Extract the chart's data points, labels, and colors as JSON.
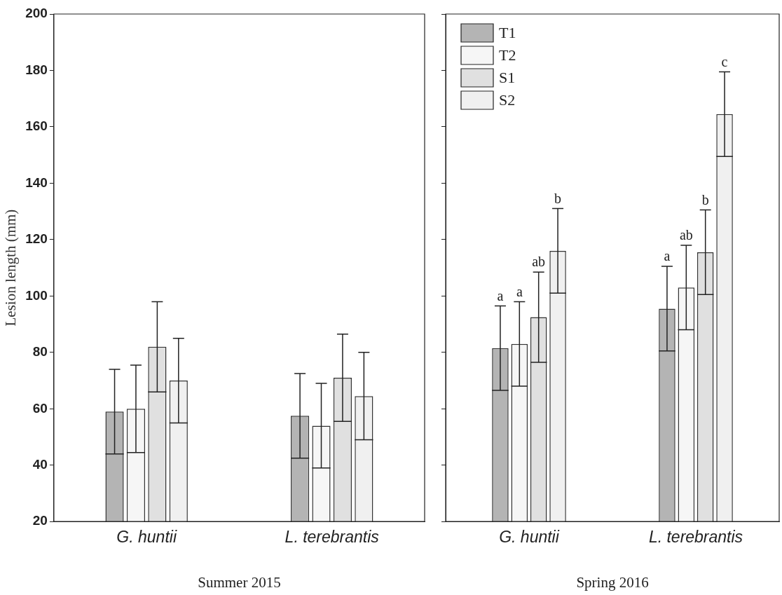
{
  "chart_data": [
    {
      "type": "bar",
      "xlabel": "Summer 2015",
      "ylabel": "Lesion length (mm)",
      "categories": [
        "G. huntii",
        "L. terebrantis"
      ],
      "ylim": [
        20,
        200
      ],
      "yticks": [
        20,
        40,
        60,
        80,
        100,
        120,
        140,
        160,
        180,
        200
      ],
      "grid": false,
      "legend": false,
      "series": [
        {
          "color": "#b4b4b4",
          "values": [
            59,
            57.5
          ],
          "errors": [
            15,
            15
          ]
        },
        {
          "color": "#f6f6f6",
          "values": [
            60,
            54
          ],
          "errors": [
            15.5,
            15
          ]
        },
        {
          "color": "#e0e0e0",
          "values": [
            82,
            71
          ],
          "errors": [
            16,
            15.5
          ]
        },
        {
          "color": "#f0f0f0",
          "values": [
            70,
            64.5
          ],
          "errors": [
            15,
            15.5
          ]
        }
      ]
    },
    {
      "type": "bar",
      "xlabel": "Spring 2016",
      "categories": [
        "G. huntii",
        "L. terebrantis"
      ],
      "ylim": [
        20,
        200
      ],
      "yticks": [
        20,
        40,
        60,
        80,
        100,
        120,
        140,
        160,
        180,
        200
      ],
      "grid": false,
      "legend": "top left",
      "tick_labels": "x",
      "series": [
        {
          "name": "T1",
          "color": "#b4b4b4",
          "values": [
            81.5,
            95.5
          ],
          "errors": [
            15,
            15
          ]
        },
        {
          "name": "T2",
          "color": "#f6f6f6",
          "values": [
            83,
            103
          ],
          "errors": [
            15,
            15
          ]
        },
        {
          "name": "S1",
          "color": "#e0e0e0",
          "values": [
            92.5,
            115.5
          ],
          "errors": [
            16,
            15
          ]
        },
        {
          "name": "S2",
          "color": "#f0f0f0",
          "values": [
            116,
            164.5
          ],
          "errors": [
            15,
            15
          ]
        }
      ],
      "annotations": [
        "a",
        "a",
        "ab",
        "b",
        "a",
        "ab",
        "b",
        "c"
      ]
    }
  ]
}
